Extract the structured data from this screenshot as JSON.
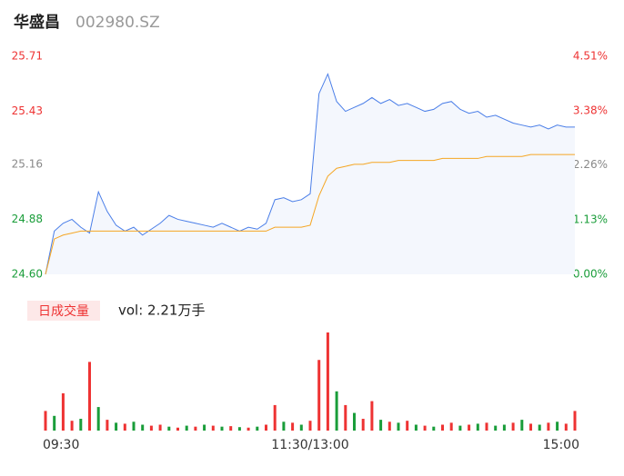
{
  "chart_data": [
    {
      "type": "line",
      "title": "华盛昌",
      "subtitle": "002980.SZ",
      "x": [
        0,
        4,
        8,
        12,
        16,
        20,
        24,
        28,
        32,
        36,
        40,
        44,
        48,
        52,
        56,
        60,
        64,
        68,
        72,
        76,
        80,
        84,
        88,
        92,
        96,
        100,
        104,
        108,
        112,
        116,
        120,
        124,
        128,
        132,
        136,
        140,
        144,
        148,
        152,
        156,
        160,
        164,
        168,
        172,
        176,
        180,
        184,
        188,
        192,
        196,
        200,
        204,
        208,
        212,
        216,
        220,
        224,
        228,
        232,
        236,
        240
      ],
      "xlim": [
        0,
        240
      ],
      "series": [
        {
          "color": "#4a7ee8",
          "values": [
            24.6,
            24.82,
            24.86,
            24.88,
            24.84,
            24.81,
            25.02,
            24.92,
            24.85,
            24.82,
            24.84,
            24.8,
            24.83,
            24.86,
            24.9,
            24.88,
            24.87,
            24.86,
            24.85,
            24.84,
            24.86,
            24.84,
            24.82,
            24.84,
            24.83,
            24.86,
            24.98,
            24.99,
            24.97,
            24.98,
            25.01,
            25.52,
            25.62,
            25.48,
            25.43,
            25.45,
            25.47,
            25.5,
            25.47,
            25.49,
            25.46,
            25.47,
            25.45,
            25.43,
            25.44,
            25.47,
            25.48,
            25.44,
            25.42,
            25.43,
            25.4,
            25.41,
            25.39,
            25.37,
            25.36,
            25.35,
            25.36,
            25.34,
            25.36,
            25.35,
            25.35
          ]
        },
        {
          "color": "#f5a623",
          "values": [
            24.6,
            24.78,
            24.8,
            24.81,
            24.82,
            24.82,
            24.82,
            24.82,
            24.82,
            24.82,
            24.82,
            24.82,
            24.82,
            24.82,
            24.82,
            24.82,
            24.82,
            24.82,
            24.82,
            24.82,
            24.82,
            24.82,
            24.82,
            24.82,
            24.82,
            24.82,
            24.84,
            24.84,
            24.84,
            24.84,
            24.85,
            25.0,
            25.1,
            25.14,
            25.15,
            25.16,
            25.16,
            25.17,
            25.17,
            25.17,
            25.18,
            25.18,
            25.18,
            25.18,
            25.18,
            25.19,
            25.19,
            25.19,
            25.19,
            25.19,
            25.2,
            25.2,
            25.2,
            25.2,
            25.2,
            25.21,
            25.21,
            25.21,
            25.21,
            25.21,
            25.21
          ]
        }
      ],
      "ylim": [
        24.6,
        25.71
      ],
      "yticks": [
        {
          "value": 25.71,
          "label": "25.71"
        },
        {
          "value": 25.43,
          "label": "25.43"
        },
        {
          "value": 25.16,
          "label": "25.16"
        },
        {
          "value": 24.88,
          "label": "24.88"
        },
        {
          "value": 24.6,
          "label": "24.60"
        }
      ],
      "y2lim": [
        0,
        4.51
      ],
      "y2ticks": [
        {
          "value": 4.51,
          "label": "4.51%"
        },
        {
          "value": 3.38,
          "label": "3.38%"
        },
        {
          "value": 2.26,
          "label": "2.26%"
        },
        {
          "value": 1.13,
          "label": "1.13%"
        },
        {
          "value": 0,
          "label": "0.00%"
        }
      ]
    },
    {
      "type": "bar",
      "title": "日成交量",
      "annotation": "vol: 2.21万手",
      "x": [
        0,
        4,
        8,
        12,
        16,
        20,
        24,
        28,
        32,
        36,
        40,
        44,
        48,
        52,
        56,
        60,
        64,
        68,
        72,
        76,
        80,
        84,
        88,
        92,
        96,
        100,
        104,
        108,
        112,
        116,
        120,
        124,
        128,
        132,
        136,
        140,
        144,
        148,
        152,
        156,
        160,
        164,
        168,
        172,
        176,
        180,
        184,
        188,
        192,
        196,
        200,
        204,
        208,
        212,
        216,
        220,
        224,
        228,
        232,
        236,
        240
      ],
      "xlim": [
        0,
        240
      ],
      "xticks": [
        {
          "value": 0,
          "label": "09:30"
        },
        {
          "value": 120,
          "label": "11:30/13:00"
        },
        {
          "value": 240,
          "label": "15:00"
        }
      ],
      "values": [
        200,
        150,
        380,
        100,
        120,
        700,
        240,
        110,
        80,
        70,
        90,
        60,
        50,
        60,
        40,
        30,
        50,
        40,
        60,
        50,
        40,
        45,
        35,
        30,
        40,
        60,
        260,
        90,
        80,
        60,
        100,
        720,
        1000,
        400,
        260,
        180,
        120,
        300,
        110,
        90,
        80,
        100,
        60,
        50,
        40,
        60,
        80,
        50,
        60,
        70,
        80,
        50,
        60,
        80,
        110,
        70,
        60,
        80,
        90,
        70,
        200
      ],
      "colors": [
        "#e33",
        "#1a9d3a",
        "#e33",
        "#e33",
        "#1a9d3a",
        "#e33",
        "#1a9d3a",
        "#e33",
        "#1a9d3a",
        "#e33",
        "#1a9d3a",
        "#1a9d3a",
        "#e33",
        "#e33",
        "#1a9d3a",
        "#e33",
        "#1a9d3a",
        "#e33",
        "#1a9d3a",
        "#e33",
        "#1a9d3a",
        "#e33",
        "#1a9d3a",
        "#e33",
        "#1a9d3a",
        "#e33",
        "#e33",
        "#1a9d3a",
        "#e33",
        "#1a9d3a",
        "#e33",
        "#e33",
        "#e33",
        "#1a9d3a",
        "#e33",
        "#1a9d3a",
        "#e33",
        "#e33",
        "#1a9d3a",
        "#e33",
        "#1a9d3a",
        "#e33",
        "#1a9d3a",
        "#e33",
        "#1a9d3a",
        "#e33",
        "#e33",
        "#1a9d3a",
        "#e33",
        "#1a9d3a",
        "#e33",
        "#1a9d3a",
        "#1a9d3a",
        "#e33",
        "#1a9d3a",
        "#e33",
        "#1a9d3a",
        "#e33",
        "#1a9d3a",
        "#e33",
        "#e33"
      ]
    }
  ]
}
